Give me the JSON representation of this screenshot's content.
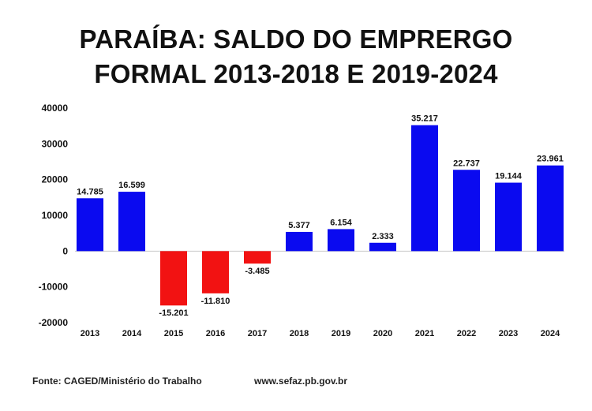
{
  "title_lines": [
    "PARAÍBA: SALDO DO EMPRERGO",
    "FORMAL 2013-2018 E 2019-2024"
  ],
  "chart_data": {
    "type": "bar",
    "title": "PARAÍBA: SALDO DO EMPRERGO FORMAL 2013-2018 E 2019-2024",
    "xlabel": "",
    "ylabel": "",
    "categories": [
      "2013",
      "2014",
      "2015",
      "2016",
      "2017",
      "2018",
      "2019",
      "2020",
      "2021",
      "2022",
      "2023",
      "2024"
    ],
    "values": [
      14785,
      16599,
      -15201,
      -11810,
      -3485,
      5377,
      6154,
      2333,
      35217,
      22737,
      19144,
      23961
    ],
    "data_labels": [
      "14.785",
      "16.599",
      "-15.201",
      "-11.810",
      "-3.485",
      "5.377",
      "6.154",
      "2.333",
      "35.217",
      "22.737",
      "19.144",
      "23.961"
    ],
    "ylim": [
      -20000,
      40000
    ],
    "yticks": [
      40000,
      30000,
      20000,
      10000,
      0,
      -10000,
      -20000
    ],
    "ytick_labels": [
      "40000",
      "30000",
      "20000",
      "10000",
      "0",
      "-10000",
      "-20000"
    ],
    "grid": false,
    "colors": {
      "positive": "#0a0af0",
      "negative": "#f21212"
    }
  },
  "footer": {
    "source": "Fonte: CAGED/Ministério do Trabalho",
    "site": "www.sefaz.pb.gov.br"
  }
}
